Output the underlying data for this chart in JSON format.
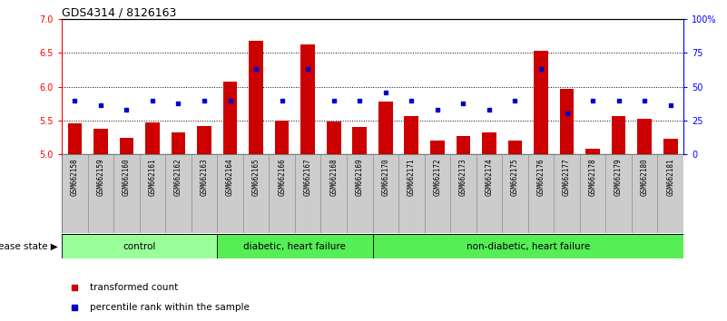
{
  "title": "GDS4314 / 8126163",
  "samples": [
    "GSM662158",
    "GSM662159",
    "GSM662160",
    "GSM662161",
    "GSM662162",
    "GSM662163",
    "GSM662164",
    "GSM662165",
    "GSM662166",
    "GSM662167",
    "GSM662168",
    "GSM662169",
    "GSM662170",
    "GSM662171",
    "GSM662172",
    "GSM662173",
    "GSM662174",
    "GSM662175",
    "GSM662176",
    "GSM662177",
    "GSM662178",
    "GSM662179",
    "GSM662180",
    "GSM662181"
  ],
  "bar_values": [
    5.45,
    5.38,
    5.24,
    5.47,
    5.32,
    5.42,
    6.07,
    6.68,
    5.5,
    6.63,
    5.48,
    5.4,
    5.78,
    5.57,
    5.2,
    5.27,
    5.32,
    5.2,
    6.53,
    5.97,
    5.08,
    5.57,
    5.53,
    5.23
  ],
  "dot_values": [
    5.79,
    5.72,
    5.66,
    5.79,
    5.75,
    5.79,
    5.79,
    6.26,
    5.79,
    6.26,
    5.79,
    5.79,
    5.92,
    5.79,
    5.66,
    5.75,
    5.66,
    5.79,
    6.26,
    5.6,
    5.79,
    5.79,
    5.79,
    5.72
  ],
  "ylim": [
    5.0,
    7.0
  ],
  "yticks_left": [
    5.0,
    5.5,
    6.0,
    6.5,
    7.0
  ],
  "yticks_right_values": [
    0,
    25,
    50,
    75,
    100
  ],
  "yticks_right_positions": [
    5.0,
    5.5,
    6.0,
    6.5,
    7.0
  ],
  "bar_color": "#cc0000",
  "dot_color": "#0000cc",
  "groups": [
    {
      "label": "control",
      "start": 0,
      "end": 6,
      "color": "#99ff99"
    },
    {
      "label": "diabetic, heart failure",
      "start": 6,
      "end": 12,
      "color": "#55ee55"
    },
    {
      "label": "non-diabetic, heart failure",
      "start": 12,
      "end": 24,
      "color": "#55ee55"
    }
  ],
  "disease_state_label": "disease state",
  "legend_bar_label": "transformed count",
  "legend_dot_label": "percentile rank within the sample",
  "bar_color_legend": "#cc0000",
  "dot_color_legend": "#0000cc",
  "title_fontsize": 9,
  "tick_fontsize": 7,
  "sample_fontsize": 5.5,
  "label_fontsize": 7.5
}
